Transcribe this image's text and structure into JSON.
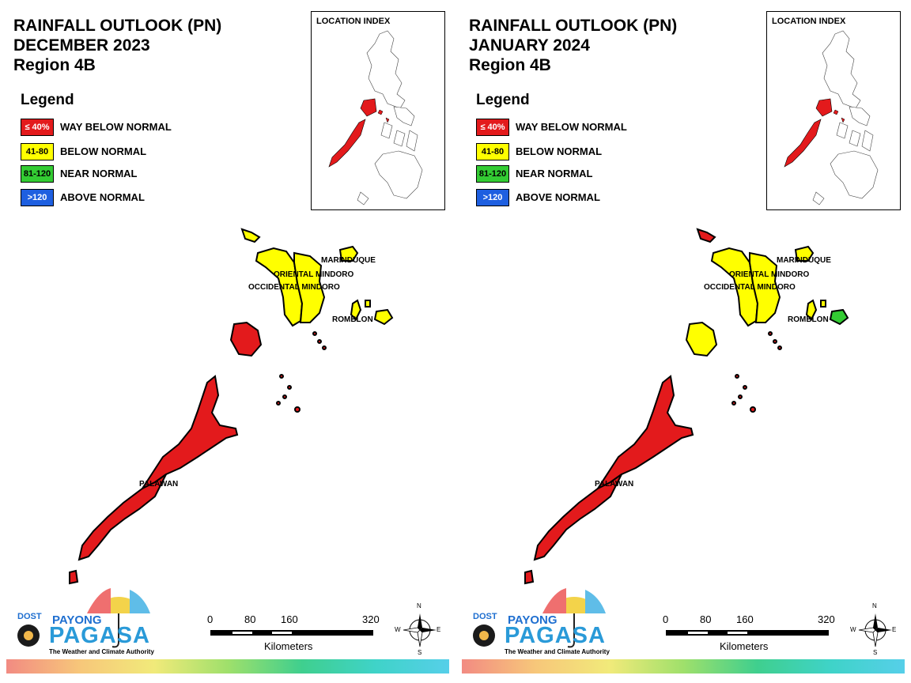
{
  "colors": {
    "way_below": "#e31a1c",
    "below": "#ffff00",
    "near": "#33cc33",
    "above": "#1e5fe0"
  },
  "legend": {
    "title": "Legend",
    "items": [
      {
        "range": "≤ 40%",
        "label": "WAY BELOW NORMAL",
        "color": "#e31a1c",
        "text_color": "#ffffff"
      },
      {
        "range": "41-80",
        "label": "BELOW NORMAL",
        "color": "#ffff00",
        "text_color": "#000000"
      },
      {
        "range": "81-120",
        "label": "NEAR NORMAL",
        "color": "#33cc33",
        "text_color": "#000000"
      },
      {
        "range": ">120",
        "label": "ABOVE NORMAL",
        "color": "#1e5fe0",
        "text_color": "#ffffff"
      }
    ]
  },
  "inset_label": "LOCATION INDEX",
  "scale": {
    "ticks": [
      "0",
      "80",
      "160",
      "320"
    ],
    "units": "Kilometers"
  },
  "compass": {
    "n": "N",
    "s": "S",
    "e": "E",
    "w": "W"
  },
  "logo": {
    "dost": "DOST",
    "payong": "PAYONG",
    "pagasa": "PAGASA",
    "tagline": "The Weather and Climate Authority"
  },
  "panels": [
    {
      "title_line1": "RAINFALL OUTLOOK (PN)",
      "title_line2": "DECEMBER 2023",
      "title_line3": "Region 4B",
      "provinces": {
        "marinduque": {
          "label": "MARINDUQUE",
          "category": "below"
        },
        "oriental_mindoro": {
          "label": "ORIENTAL MINDORO",
          "category": "below"
        },
        "occidental_mindoro": {
          "label": "OCCIDENTAL MINDORO",
          "category": "below"
        },
        "romblon": {
          "label": "ROMBLON",
          "category": "below"
        },
        "palawan": {
          "label": "PALAWAN",
          "category": "way_below"
        }
      }
    },
    {
      "title_line1": "RAINFALL OUTLOOK (PN)",
      "title_line2": "JANUARY 2024",
      "title_line3": "Region 4B",
      "provinces": {
        "marinduque": {
          "label": "MARINDUQUE",
          "category": "below"
        },
        "oriental_mindoro": {
          "label": "ORIENTAL MINDORO",
          "category": "below"
        },
        "occidental_mindoro": {
          "label": "OCCIDENTAL MINDORO",
          "category": "below"
        },
        "romblon": {
          "label": "ROMBLON",
          "category": "near"
        },
        "palawan": {
          "label": "PALAWAN",
          "category": "way_below"
        }
      }
    }
  ]
}
